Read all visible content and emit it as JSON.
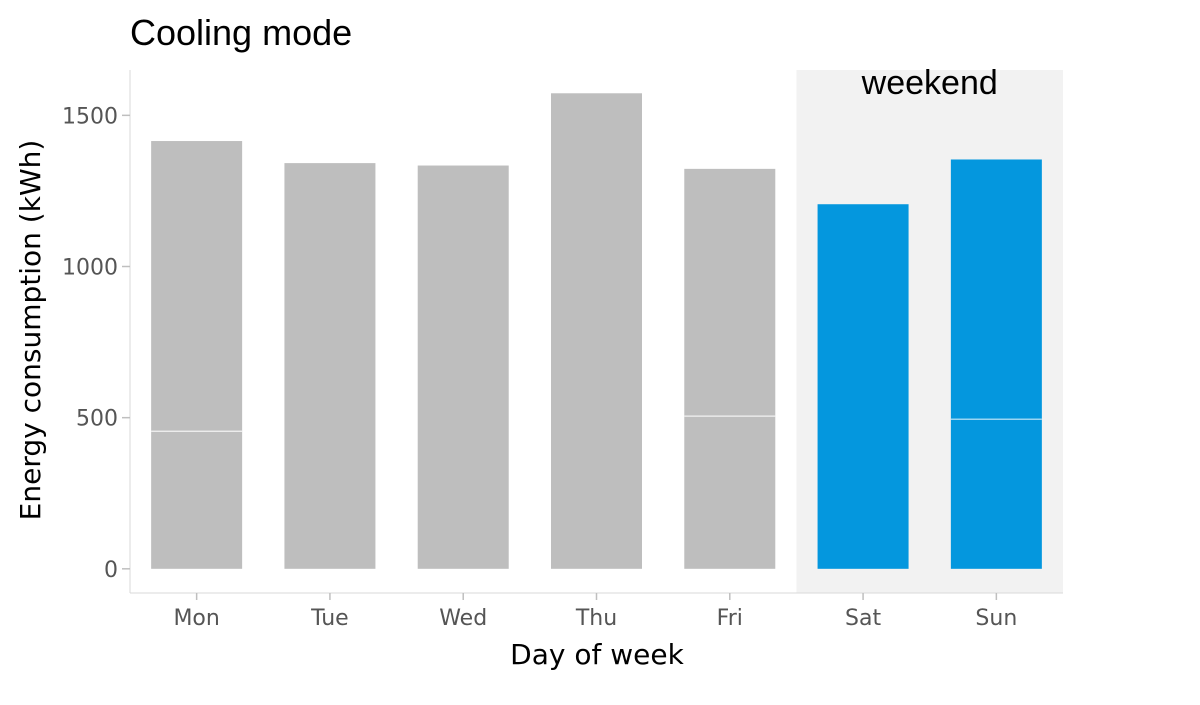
{
  "chart_data": {
    "type": "bar",
    "title": "Cooling mode",
    "xlabel": "Day of week",
    "ylabel": "Energy consumption (kWh)",
    "categories": [
      "Mon",
      "Tue",
      "Wed",
      "Thu",
      "Fri",
      "Sat",
      "Sun"
    ],
    "values": [
      1415,
      1342,
      1334,
      1573,
      1323,
      1206,
      1354
    ],
    "segment_lines": [
      455,
      null,
      null,
      null,
      505,
      null,
      495
    ],
    "highlight": {
      "label": "weekend",
      "categories": [
        "Sat",
        "Sun"
      ]
    },
    "yticks": [
      0,
      500,
      1000,
      1500
    ],
    "ylim": [
      -80,
      1650
    ],
    "grid": false,
    "legend": "none",
    "colors": {
      "default_bar": "#bebebe",
      "highlight_bar": "#0497de",
      "highlight_band": "#f2f2f2",
      "axis_line": "#d9d9d9",
      "segment_line": "#ffffff"
    }
  }
}
